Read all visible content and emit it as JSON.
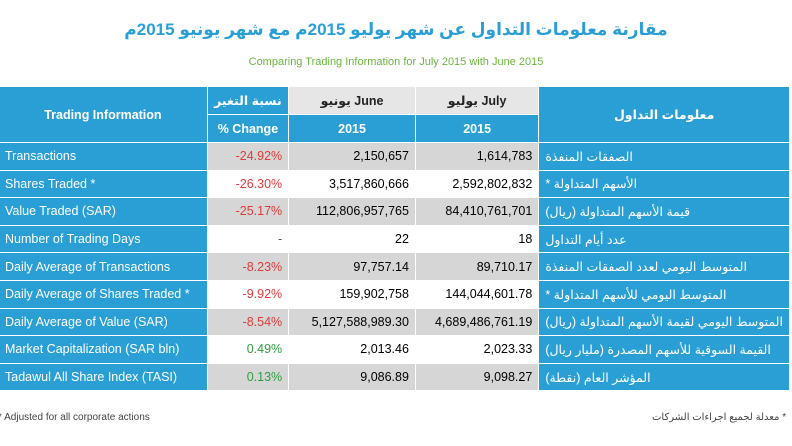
{
  "title_ar": "مقارنة معلومات التداول عن شهر يوليو 2015م مع شهر يونيو 2015م",
  "title_en": "Comparing Trading Information for July 2015  with June 2015",
  "header": {
    "trading_info": "Trading Information",
    "change_ar": "نسبة التغير",
    "change_en": "% Change",
    "june": "يونيو  June",
    "july": "يوليو  July",
    "year_june": "2015",
    "year_july": "2015",
    "trading_info_ar": "معلومات التداول"
  },
  "rows": [
    {
      "en": "Transactions",
      "change": "-24.92%",
      "june": "2,150,657",
      "july": "1,614,783",
      "ar": "الصفقات المنفذة"
    },
    {
      "en": "Shares Traded *",
      "change": "-26.30%",
      "june": "3,517,860,666",
      "july": "2,592,802,832",
      "ar": "الأسهم المتداولة *"
    },
    {
      "en": "Value Traded (SAR)",
      "change": "-25.17%",
      "june": "112,806,957,765",
      "july": "84,410,761,701",
      "ar": "قيمة الأسهم المتداولة (ريال)"
    },
    {
      "en": "Number of Trading Days",
      "change": "-",
      "june": "22",
      "july": "18",
      "ar": "عدد أيام التداول"
    },
    {
      "en": "Daily Average of Transactions",
      "change": "-8.23%",
      "june": "97,757.14",
      "july": "89,710.17",
      "ar": "المتوسط اليومي لعدد الصفقات المنفذة"
    },
    {
      "en": "Daily Average of Shares Traded *",
      "change": "-9.92%",
      "june": "159,902,758",
      "july": "144,044,601.78",
      "ar": "المتوسط اليومي للأسهم المتداولة *"
    },
    {
      "en": "Daily Average of Value (SAR)",
      "change": "-8.54%",
      "june": "5,127,588,989.30",
      "july": "4,689,486,761.19",
      "ar": "المتوسط اليومي لقيمة الأسهم المتداولة (ريال)"
    },
    {
      "en": "Market Capitalization (SAR bln)",
      "change": "0.49%",
      "june": "2,013.46",
      "july": "2,023.33",
      "ar": "القيمة السوقية للأسهم المصدرة (مليار ريال)"
    },
    {
      "en": "Tadawul All Share Index (TASI)",
      "change": "0.13%",
      "june": "9,086.89",
      "july": "9,098.27",
      "ar": "المؤشر العام (نقطة)"
    }
  ],
  "footnote_en": "* Adjusted for all corporate actions",
  "footnote_ar": "* معدلة لجميع اجراءات الشركات"
}
